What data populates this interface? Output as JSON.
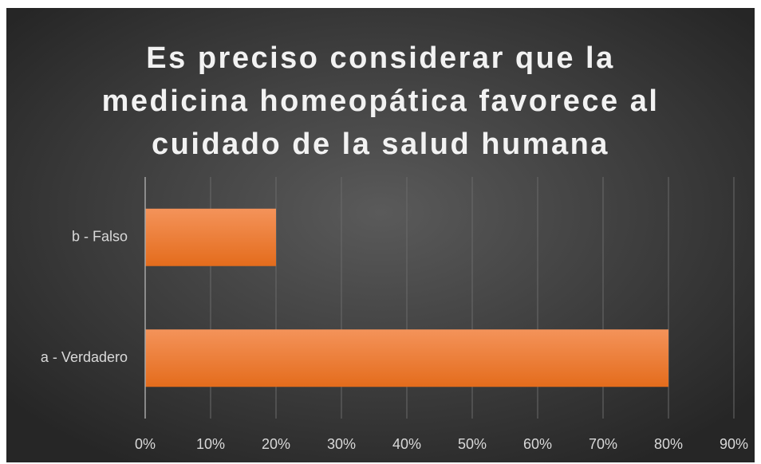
{
  "chart_data": {
    "type": "bar",
    "orientation": "horizontal",
    "title": [
      "Es preciso considerar que la",
      "medicina homeopática favorece al",
      "cuidado de la salud humana"
    ],
    "categories": [
      "a - Verdadero",
      "b - Falso"
    ],
    "values": [
      80,
      20
    ],
    "color": "#ed7d31",
    "xlim": [
      0,
      90
    ],
    "xticks": [
      {
        "value": 0,
        "label": "0%"
      },
      {
        "value": 10,
        "label": "10%"
      },
      {
        "value": 20,
        "label": "20%"
      },
      {
        "value": 30,
        "label": "30%"
      },
      {
        "value": 40,
        "label": "40%"
      },
      {
        "value": 50,
        "label": "50%"
      },
      {
        "value": 60,
        "label": "60%"
      },
      {
        "value": 70,
        "label": "70%"
      },
      {
        "value": 80,
        "label": "80%"
      },
      {
        "value": 90,
        "label": "90%"
      }
    ],
    "grid": true
  }
}
